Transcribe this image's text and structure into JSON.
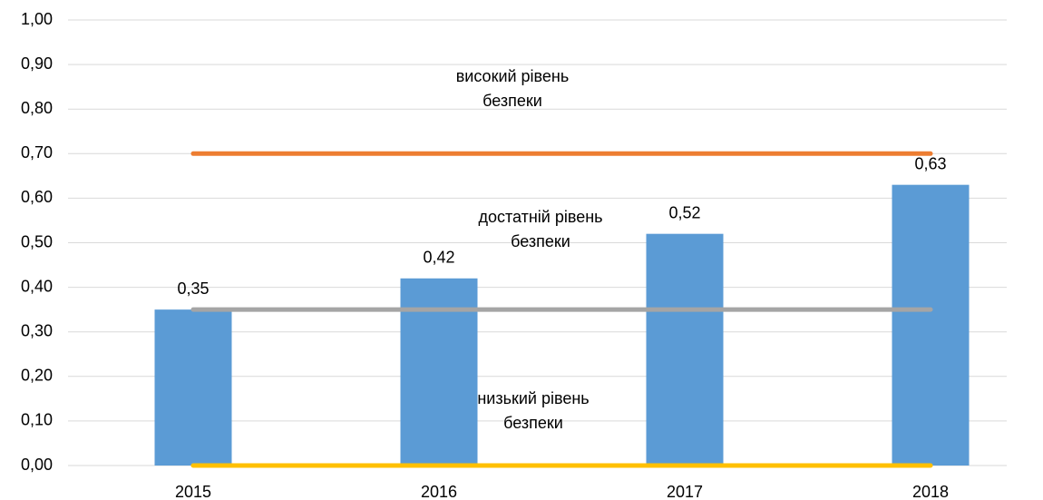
{
  "chart_data": {
    "type": "bar",
    "categories": [
      "2015",
      "2016",
      "2017",
      "2018"
    ],
    "values": [
      0.35,
      0.42,
      0.52,
      0.63
    ],
    "value_labels": [
      "0,35",
      "0,42",
      "0,52",
      "0,63"
    ],
    "color": "#5b9bd5",
    "lines": [
      {
        "color": "#ed7d31",
        "values": [
          0.7,
          0.7,
          0.7,
          0.7
        ]
      },
      {
        "color": "#a5a5a5",
        "values": [
          0.35,
          0.35,
          0.35,
          0.35
        ]
      },
      {
        "color": "#ffc000",
        "values": [
          0,
          0,
          0,
          0
        ]
      }
    ],
    "annotations": [
      [
        "високий рівень",
        "безпеки"
      ],
      [
        "достатній рівень",
        "безпеки"
      ],
      [
        "низький рівень",
        "безпеки"
      ]
    ],
    "ylim": [
      0,
      1
    ],
    "yticks": [
      {
        "value": 0,
        "label": "0,00"
      },
      {
        "value": 0.1,
        "label": "0,10"
      },
      {
        "value": 0.2,
        "label": "0,20"
      },
      {
        "value": 0.3,
        "label": "0,30"
      },
      {
        "value": 0.4,
        "label": "0,40"
      },
      {
        "value": 0.5,
        "label": "0,50"
      },
      {
        "value": 0.6,
        "label": "0,60"
      },
      {
        "value": 0.7,
        "label": "0,70"
      },
      {
        "value": 0.8,
        "label": "0,80"
      },
      {
        "value": 0.9,
        "label": "0,90"
      },
      {
        "value": 1,
        "label": "1,00"
      }
    ],
    "grid": true
  }
}
